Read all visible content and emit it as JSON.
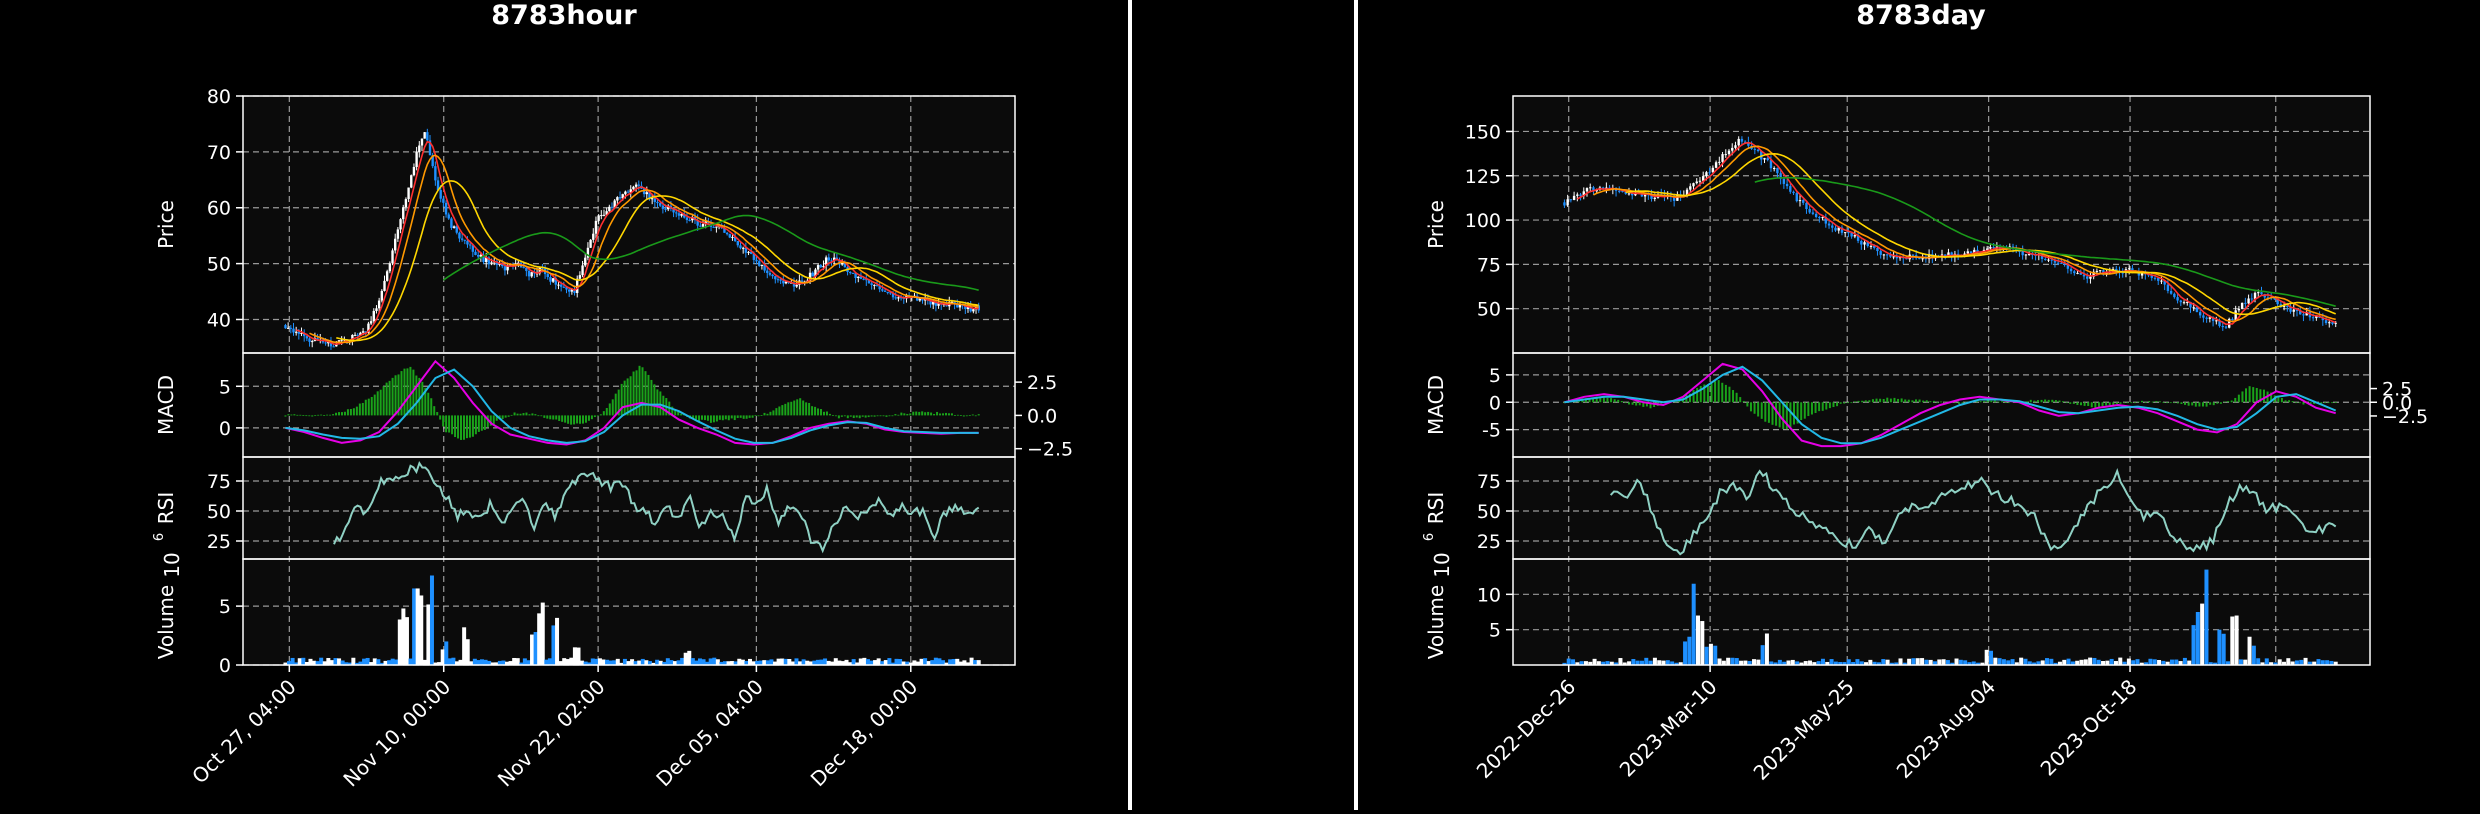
{
  "colors": {
    "background": "#000000",
    "panel": "#0b0b0b",
    "axis": "#ffffff",
    "grid": "#c9c9c9",
    "ma_fast": "#ff3030",
    "ma_mid": "#ff9900",
    "ma_slow": "#ffd700",
    "ma_long": "#1a9a1a",
    "macd": "#e600e6",
    "signal": "#22b8e6",
    "hist": "#1aa31a",
    "rsi": "#8fd1c4",
    "candle_up": "#ffffff",
    "candle_down": "#1e90ff",
    "volume_up": "#ffffff",
    "volume_down": "#1e90ff"
  },
  "chart_data": [
    {
      "type": "candlestick",
      "title": "8783hour",
      "xticks": [
        "Oct 27, 04:00",
        "Nov 10, 00:00",
        "Nov 22, 02:00",
        "Dec 05, 04:00",
        "Dec 18, 00:00"
      ],
      "price": {
        "ylabel": "Price",
        "ylim": [
          34,
          80
        ],
        "yticks": [
          40,
          50,
          60,
          70,
          80
        ],
        "close_path": [
          39,
          37.5,
          36.5,
          36,
          35.5,
          36,
          37,
          38,
          43,
          50,
          58,
          67,
          74,
          65,
          58,
          55,
          53,
          51,
          50,
          49,
          50,
          48,
          49,
          47,
          46,
          45,
          52,
          58,
          60,
          62,
          64,
          63,
          61,
          60,
          59,
          58,
          57,
          57,
          56,
          54,
          52,
          50,
          48,
          47,
          46,
          47,
          49,
          51,
          50,
          48,
          47,
          46,
          45,
          44,
          44,
          43.5,
          43,
          43,
          42.5,
          42,
          42
        ]
      },
      "macd": {
        "ylabel": "MACD",
        "ylim": [
          -3.5,
          9
        ],
        "yticks_left": [
          0,
          5
        ],
        "yticks_right": [
          "2.5",
          "0.0",
          "−2.5"
        ],
        "hist_path": [
          0,
          0,
          0,
          0.3,
          1,
          2.5,
          4.5,
          6,
          3,
          -2,
          -3,
          -2,
          -0.5,
          0.3,
          0.2,
          -0.5,
          -1,
          -0.8,
          0.5,
          4,
          6,
          3,
          0.5,
          -0.5,
          -0.8,
          -0.5,
          -0.3,
          0.2,
          1.2,
          2,
          0.8,
          -0.2,
          -0.3,
          -0.2,
          0,
          0.3,
          0.4,
          0.2,
          0,
          0
        ],
        "macd_path": [
          0,
          -0.5,
          -1.2,
          -1.8,
          -1.5,
          -0.5,
          2,
          5,
          8,
          6,
          3,
          0.5,
          -0.8,
          -1.3,
          -1.8,
          -2,
          -1.5,
          0,
          2.5,
          3,
          2.5,
          1,
          0,
          -0.8,
          -1.8,
          -2,
          -1.8,
          -1,
          0,
          0.5,
          0.8,
          0.5,
          -0.2,
          -0.5,
          -0.6,
          -0.7,
          -0.6,
          -0.6
        ],
        "signal_path": [
          0,
          -0.3,
          -0.8,
          -1.2,
          -1.3,
          -1,
          0.5,
          3,
          6,
          7,
          5,
          2,
          0,
          -1,
          -1.5,
          -1.8,
          -1.6,
          -0.5,
          1.5,
          2.8,
          2.8,
          2,
          0.8,
          -0.3,
          -1.3,
          -1.8,
          -1.8,
          -1.2,
          -0.3,
          0.3,
          0.7,
          0.6,
          0,
          -0.4,
          -0.5,
          -0.6,
          -0.6,
          -0.6
        ]
      },
      "rsi": {
        "ylabel": "RSI",
        "ylim": [
          10,
          95
        ],
        "yticks": [
          25,
          50,
          75
        ],
        "path": [
          22,
          35,
          60,
          45,
          72,
          80,
          75,
          85,
          88,
          72,
          65,
          45,
          50,
          42,
          55,
          40,
          48,
          62,
          38,
          55,
          45,
          68,
          78,
          82,
          75,
          70,
          72,
          55,
          48,
          40,
          55,
          42,
          62,
          35,
          50,
          45,
          28,
          60,
          55,
          68,
          40,
          55,
          48,
          25,
          18,
          38,
          55,
          45,
          50,
          58,
          45,
          55,
          48,
          50,
          30,
          48,
          52,
          45,
          50
        ]
      },
      "volume": {
        "ylabel": "Volume",
        "exponent": "10⁶",
        "ylim": [
          0,
          9
        ],
        "yticks": [
          0,
          5
        ],
        "spikes": [
          {
            "t": 0.17,
            "v": 4.8
          },
          {
            "t": 0.19,
            "v": 6.5
          },
          {
            "t": 0.21,
            "v": 7.6
          },
          {
            "t": 0.23,
            "v": 2
          },
          {
            "t": 0.26,
            "v": 3.2
          },
          {
            "t": 0.36,
            "v": 2.8
          },
          {
            "t": 0.37,
            "v": 5.3
          },
          {
            "t": 0.39,
            "v": 4
          },
          {
            "t": 0.42,
            "v": 1.5
          },
          {
            "t": 0.58,
            "v": 1.2
          }
        ]
      }
    },
    {
      "type": "candlestick",
      "title": "8783day",
      "xticks": [
        "2022-Dec-26",
        "2023-Mar-10",
        "2023-May-25",
        "2023-Aug-04",
        "2023-Oct-18"
      ],
      "price": {
        "ylabel": "Price",
        "ylim": [
          25,
          170
        ],
        "yticks": [
          50,
          75,
          100,
          125,
          150
        ],
        "close_path": [
          110,
          115,
          118,
          117,
          116,
          114,
          113,
          112,
          118,
          125,
          135,
          145,
          140,
          132,
          120,
          110,
          102,
          97,
          92,
          87,
          82,
          80,
          79,
          79,
          80,
          81,
          82,
          84,
          85,
          82,
          80,
          77,
          73,
          68,
          70,
          72,
          71,
          69,
          64,
          56,
          50,
          44,
          40,
          52,
          58,
          55,
          50,
          47,
          44,
          42
        ]
      },
      "macd": {
        "ylabel": "MACD",
        "ylim": [
          -10,
          9
        ],
        "yticks_left": [
          -5,
          0,
          5
        ],
        "yticks_right": [
          "2.5",
          "0.0",
          "−2.5"
        ],
        "hist_path": [
          0,
          0.5,
          1,
          0.5,
          -0.5,
          -1,
          0,
          1,
          3,
          4,
          2,
          -2,
          -4,
          -5,
          -3,
          -1.5,
          -0.5,
          0.2,
          0.5,
          0.8,
          0.5,
          0.3,
          0,
          -0.2,
          0.3,
          0.2,
          0,
          0.3,
          0.5,
          0.2,
          -0.5,
          -1,
          -0.5,
          0,
          0.2,
          0,
          -0.3,
          -0.8,
          -0.5,
          0.5,
          3,
          2,
          0.5,
          -0.3,
          -0.3,
          0
        ],
        "macd_path": [
          0,
          1,
          1.5,
          1,
          0,
          -0.5,
          1,
          4,
          7,
          6,
          2,
          -3,
          -7,
          -8,
          -8,
          -7.5,
          -6,
          -4,
          -2,
          -0.5,
          0.5,
          1,
          0.5,
          0,
          -1.5,
          -2.5,
          -2,
          -1,
          -0.5,
          -1,
          -2,
          -3.5,
          -5,
          -5.5,
          -4,
          0,
          2,
          1,
          -1,
          -2
        ],
        "signal_path": [
          0,
          0.5,
          1,
          1,
          0.5,
          0,
          0.5,
          2.5,
          5,
          6.5,
          4,
          0,
          -4,
          -6.5,
          -7.5,
          -7.5,
          -6.5,
          -5,
          -3.5,
          -2,
          -0.5,
          0.5,
          0.5,
          0.2,
          -0.8,
          -1.8,
          -2,
          -1.5,
          -1,
          -0.8,
          -1.3,
          -2.5,
          -4,
          -5,
          -4.5,
          -2,
          1,
          1.5,
          0,
          -1.5
        ]
      },
      "rsi": {
        "ylabel": "RSI",
        "ylim": [
          10,
          95
        ],
        "yticks": [
          25,
          50,
          75
        ],
        "path": [
          65,
          60,
          80,
          50,
          25,
          15,
          30,
          45,
          65,
          70,
          60,
          85,
          65,
          55,
          45,
          40,
          30,
          25,
          20,
          35,
          25,
          45,
          55,
          50,
          60,
          65,
          70,
          75,
          65,
          60,
          55,
          45,
          20,
          18,
          40,
          55,
          70,
          80,
          60,
          45,
          50,
          30,
          20,
          18,
          25,
          55,
          70,
          65,
          50,
          55,
          45,
          30,
          35,
          40
        ]
      },
      "volume": {
        "ylabel": "Volume",
        "exponent": "10⁶",
        "ylim": [
          0,
          15
        ],
        "yticks": [
          5,
          10
        ],
        "spikes": [
          {
            "t": 0.16,
            "v": 4
          },
          {
            "t": 0.17,
            "v": 11.5
          },
          {
            "t": 0.175,
            "v": 7
          },
          {
            "t": 0.19,
            "v": 3
          },
          {
            "t": 0.26,
            "v": 4.5
          },
          {
            "t": 0.55,
            "v": 3
          },
          {
            "t": 0.82,
            "v": 7.5
          },
          {
            "t": 0.83,
            "v": 13.5
          },
          {
            "t": 0.85,
            "v": 5
          },
          {
            "t": 0.87,
            "v": 7
          },
          {
            "t": 0.89,
            "v": 4
          }
        ]
      }
    }
  ]
}
